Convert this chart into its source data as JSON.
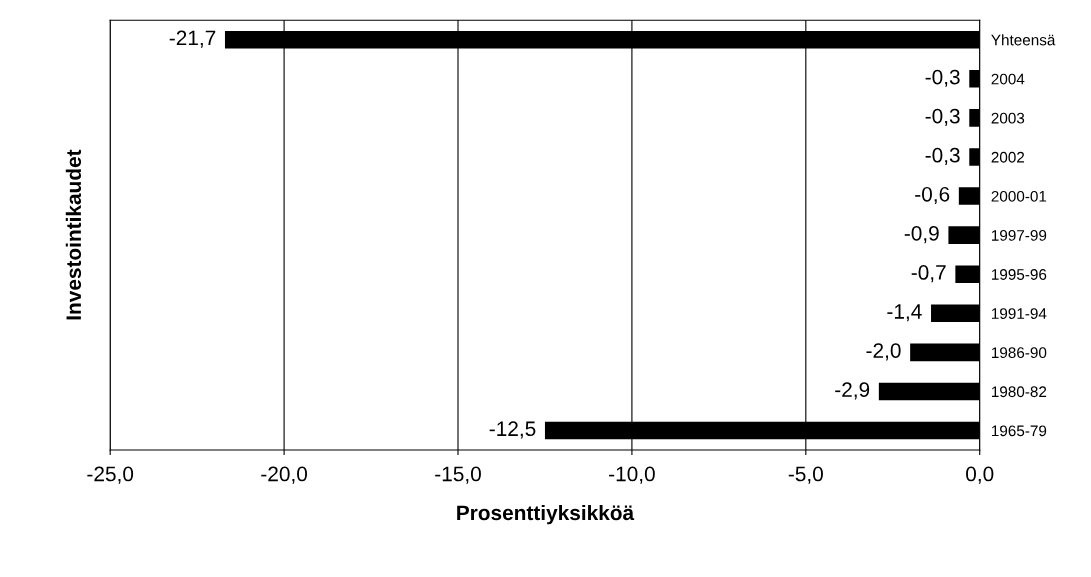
{
  "chart_data": {
    "type": "bar",
    "orientation": "horizontal",
    "categories": [
      "Yhteensä",
      "2004",
      "2003",
      "2002",
      "2000-01",
      "1997-99",
      "1995-96",
      "1991-94",
      "1986-90",
      "1980-82",
      "1965-79"
    ],
    "values": [
      -21.7,
      -0.3,
      -0.3,
      -0.3,
      -0.6,
      -0.9,
      -0.7,
      -1.4,
      -2.0,
      -2.9,
      -12.5
    ],
    "value_labels": [
      "-21,7",
      "-0,3",
      "-0,3",
      "-0,3",
      "-0,6",
      "-0,9",
      "-0,7",
      "-1,4",
      "-2,0",
      "-2,9",
      "-12,5"
    ],
    "color": "#000000",
    "xlim": [
      -25,
      0
    ],
    "xticks": [
      {
        "value": -25,
        "label": "-25,0"
      },
      {
        "value": -20,
        "label": "-20,0"
      },
      {
        "value": -15,
        "label": "-15,0"
      },
      {
        "value": -10,
        "label": "-10,0"
      },
      {
        "value": -5,
        "label": "-5,0"
      },
      {
        "value": 0,
        "label": "0,0"
      }
    ],
    "xlabel": "Prosenttiyksikköä",
    "ylabel": "Investointikaudet",
    "grid": "x",
    "legend": false
  }
}
